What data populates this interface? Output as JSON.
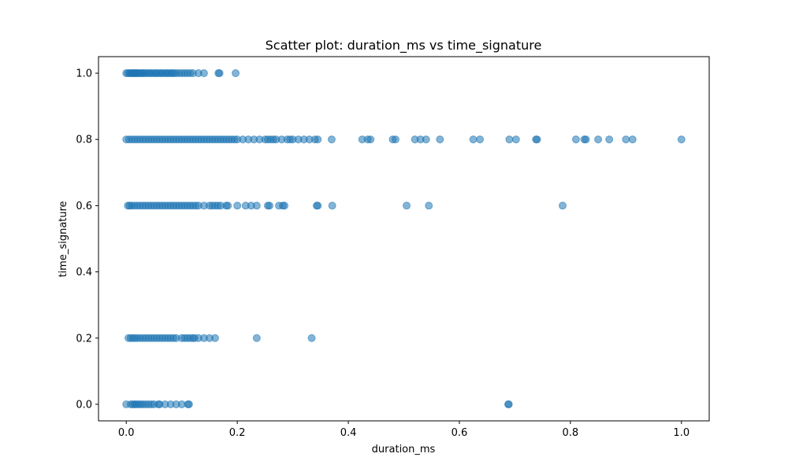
{
  "chart_data": {
    "type": "scatter",
    "title": "Scatter plot: duration_ms vs time_signature",
    "xlabel": "duration_ms",
    "ylabel": "time_signature",
    "xlim": [
      -0.05,
      1.05
    ],
    "ylim": [
      -0.05,
      1.05
    ],
    "xticks": [
      "0.0",
      "0.2",
      "0.4",
      "0.6",
      "0.8",
      "1.0"
    ],
    "yticks": [
      "0.0",
      "0.2",
      "0.4",
      "0.6",
      "0.8",
      "1.0"
    ],
    "grid": false,
    "legend": "none",
    "color": "#1f77b4",
    "alpha": 0.55,
    "series": [
      {
        "y": 1.0,
        "x": [
          0.0,
          0.003,
          0.006,
          0.008,
          0.01,
          0.012,
          0.014,
          0.016,
          0.018,
          0.02,
          0.022,
          0.025,
          0.028,
          0.03,
          0.033,
          0.036,
          0.04,
          0.043,
          0.046,
          0.05,
          0.053,
          0.056,
          0.06,
          0.063,
          0.066,
          0.07,
          0.073,
          0.076,
          0.08,
          0.083,
          0.086,
          0.09,
          0.095,
          0.1,
          0.105,
          0.11,
          0.115,
          0.12,
          0.13,
          0.14,
          0.166,
          0.168,
          0.197
        ]
      },
      {
        "y": 0.8,
        "x": [
          0.0,
          0.005,
          0.01,
          0.015,
          0.02,
          0.025,
          0.03,
          0.035,
          0.04,
          0.045,
          0.05,
          0.055,
          0.06,
          0.065,
          0.07,
          0.075,
          0.08,
          0.085,
          0.09,
          0.095,
          0.1,
          0.105,
          0.11,
          0.115,
          0.12,
          0.125,
          0.13,
          0.135,
          0.14,
          0.145,
          0.15,
          0.155,
          0.16,
          0.165,
          0.17,
          0.175,
          0.18,
          0.185,
          0.19,
          0.195,
          0.2,
          0.21,
          0.22,
          0.23,
          0.24,
          0.25,
          0.255,
          0.26,
          0.265,
          0.27,
          0.28,
          0.29,
          0.295,
          0.3,
          0.31,
          0.32,
          0.33,
          0.34,
          0.345,
          0.37,
          0.425,
          0.435,
          0.44,
          0.48,
          0.485,
          0.52,
          0.53,
          0.54,
          0.565,
          0.625,
          0.637,
          0.69,
          0.702,
          0.738,
          0.74,
          0.81,
          0.825,
          0.828,
          0.85,
          0.87,
          0.9,
          0.912,
          1.0
        ]
      },
      {
        "y": 0.6,
        "x": [
          0.003,
          0.006,
          0.01,
          0.015,
          0.02,
          0.025,
          0.03,
          0.035,
          0.04,
          0.045,
          0.05,
          0.055,
          0.06,
          0.065,
          0.07,
          0.075,
          0.08,
          0.085,
          0.09,
          0.095,
          0.1,
          0.105,
          0.11,
          0.115,
          0.12,
          0.125,
          0.13,
          0.14,
          0.15,
          0.155,
          0.16,
          0.165,
          0.17,
          0.18,
          0.183,
          0.2,
          0.215,
          0.225,
          0.235,
          0.255,
          0.258,
          0.275,
          0.282,
          0.285,
          0.343,
          0.345,
          0.371,
          0.505,
          0.545,
          0.786
        ]
      },
      {
        "y": 0.2,
        "x": [
          0.004,
          0.008,
          0.012,
          0.016,
          0.02,
          0.025,
          0.03,
          0.035,
          0.04,
          0.045,
          0.05,
          0.055,
          0.06,
          0.065,
          0.07,
          0.075,
          0.08,
          0.085,
          0.09,
          0.1,
          0.105,
          0.11,
          0.115,
          0.12,
          0.123,
          0.13,
          0.14,
          0.15,
          0.16,
          0.235,
          0.334
        ]
      },
      {
        "y": 0.0,
        "x": [
          0.0,
          0.008,
          0.012,
          0.015,
          0.018,
          0.022,
          0.026,
          0.03,
          0.035,
          0.04,
          0.045,
          0.05,
          0.058,
          0.06,
          0.07,
          0.08,
          0.09,
          0.1,
          0.111,
          0.113,
          0.688,
          0.689
        ]
      }
    ]
  }
}
